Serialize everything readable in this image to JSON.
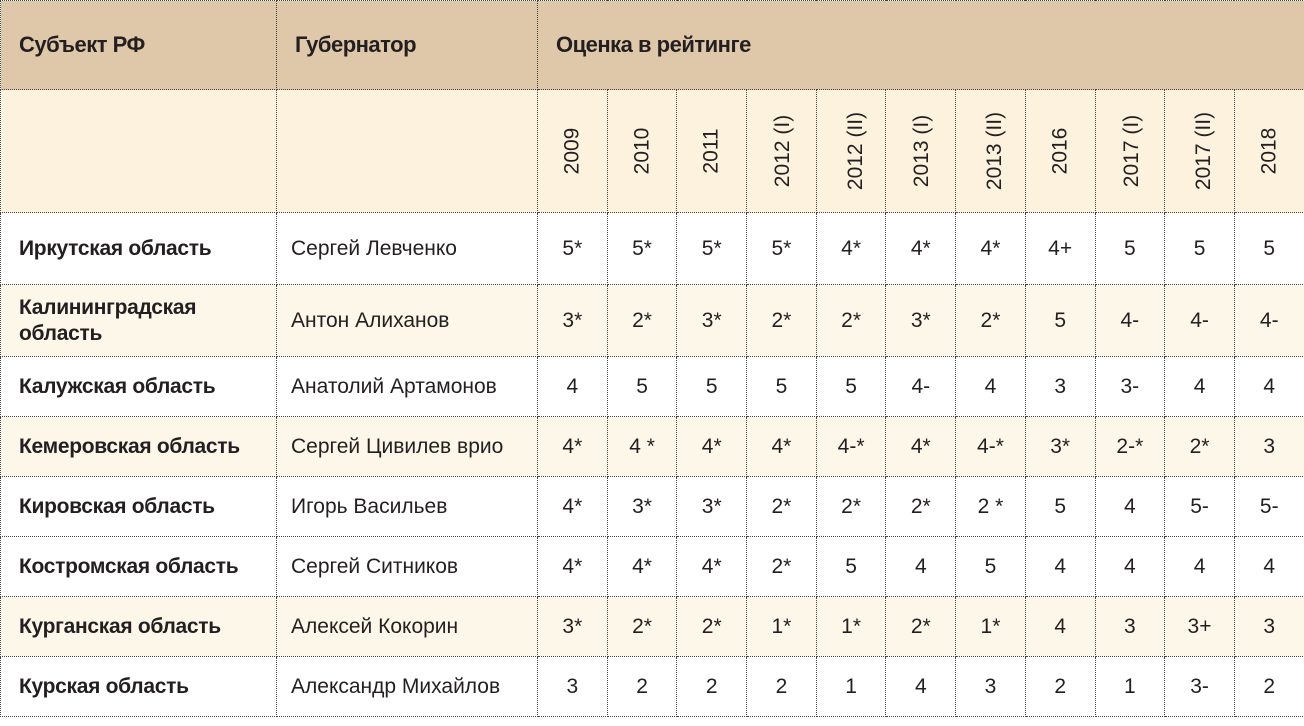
{
  "headers": {
    "region": "Субъект РФ",
    "governor": "Губернатор",
    "rating": "Оценка в рейтинге"
  },
  "years": [
    "2009",
    "2010",
    "2011",
    "2012 (I)",
    "2012 (II)",
    "2013 (I)",
    "2013 (II)",
    "2016",
    "2017 (I)",
    "2017 (II)",
    "2018"
  ],
  "colors": {
    "header": "#dec8a9",
    "subheader": "#fdf2de",
    "alt_row": "#fdf7ea"
  },
  "rows": [
    {
      "region": "Иркутская область",
      "governor": "Сергей Левченко",
      "values": [
        "5*",
        "5*",
        "5*",
        "5*",
        "4*",
        "4*",
        "4*",
        "4+",
        "5",
        "5",
        "5"
      ]
    },
    {
      "region": "Калининградская область",
      "governor": "Антон Алиханов",
      "values": [
        "3*",
        "2*",
        "3*",
        "2*",
        "2*",
        "3*",
        "2*",
        "5",
        "4-",
        "4-",
        "4-"
      ]
    },
    {
      "region": "Калужская область",
      "governor": "Анатолий Артамонов",
      "values": [
        "4",
        "5",
        "5",
        "5",
        "5",
        "4-",
        "4",
        "3",
        "3-",
        "4",
        "4"
      ]
    },
    {
      "region": "Кемеровская область",
      "governor": "Сергей Цивилев врио",
      "values": [
        "4*",
        "4 *",
        "4*",
        "4*",
        "4-*",
        "4*",
        "4-*",
        "3*",
        "2-*",
        "2*",
        "3"
      ]
    },
    {
      "region": "Кировская область",
      "governor": "Игорь Васильев",
      "values": [
        "4*",
        "3*",
        "3*",
        "2*",
        "2*",
        "2*",
        "2 *",
        "5",
        "4",
        "5-",
        "5-"
      ]
    },
    {
      "region": "Костромская область",
      "governor": "Сергей Ситников",
      "values": [
        "4*",
        "4*",
        "4*",
        "2*",
        "5",
        "4",
        "5",
        "4",
        "4",
        "4",
        "4"
      ]
    },
    {
      "region": "Курганская область",
      "governor": "Алексей Кокорин",
      "values": [
        "3*",
        "2*",
        "2*",
        "1*",
        "1*",
        "2*",
        "1*",
        "4",
        "3",
        "3+",
        "3"
      ]
    },
    {
      "region": "Курская область",
      "governor": "Александр Михайлов",
      "values": [
        "3",
        "2",
        "2",
        "2",
        "1",
        "4",
        "3",
        "2",
        "1",
        "3-",
        "2"
      ]
    }
  ]
}
